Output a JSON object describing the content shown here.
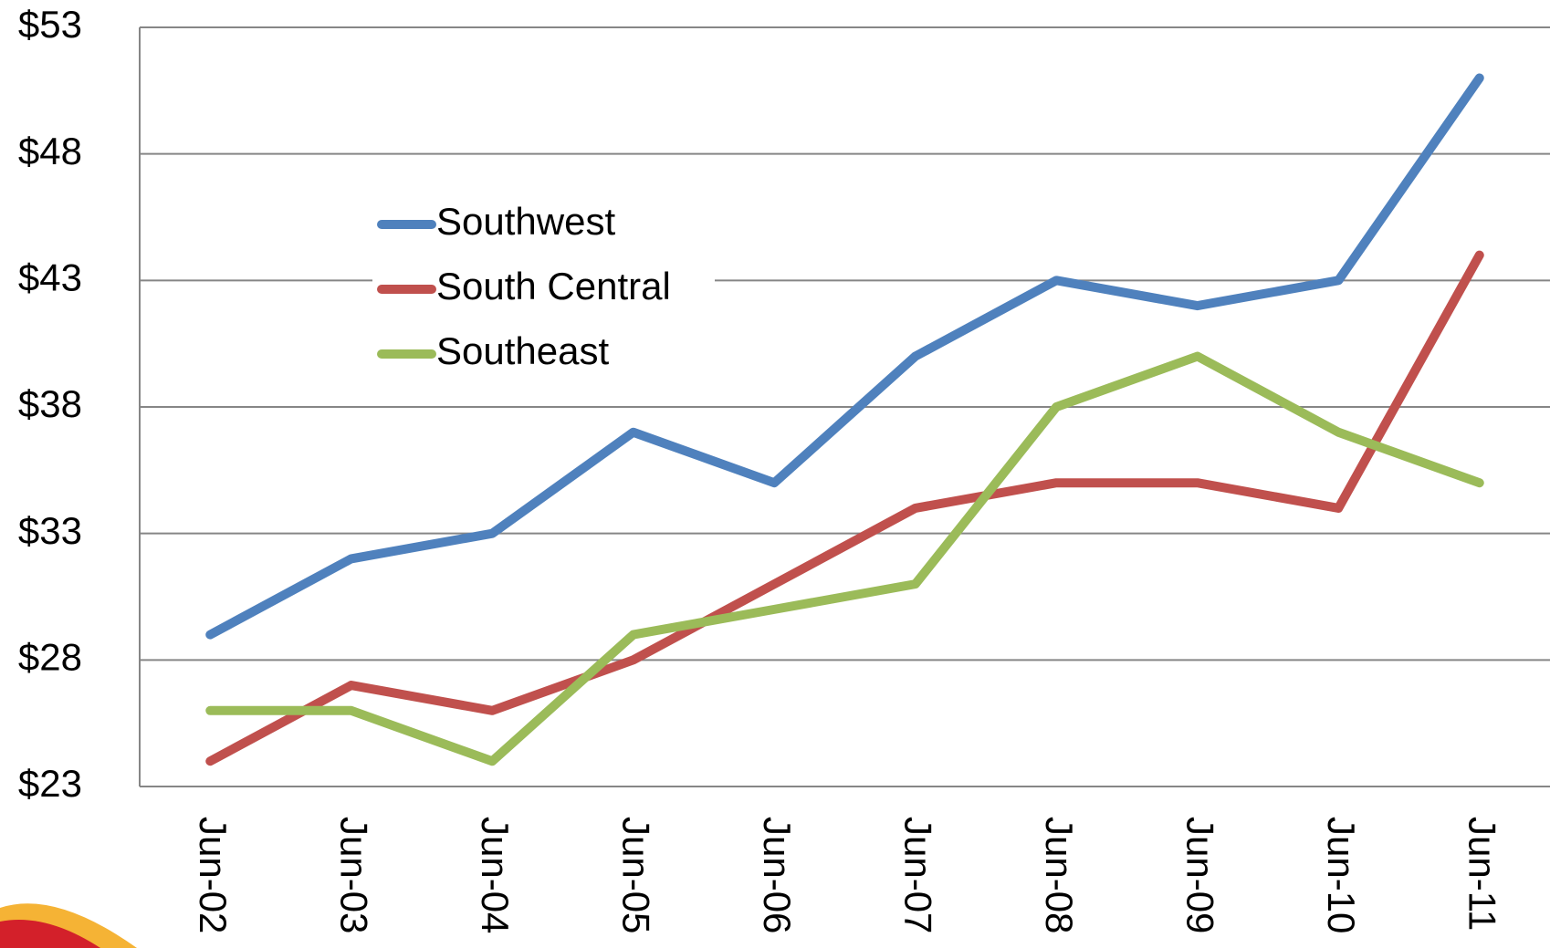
{
  "chart_data": {
    "type": "line",
    "categories": [
      "Jun-02",
      "Jun-03",
      "Jun-04",
      "Jun-05",
      "Jun-06",
      "Jun-07",
      "Jun-08",
      "Jun-09",
      "Jun-10",
      "Jun-11"
    ],
    "series": [
      {
        "name": "Southwest",
        "color": "#4f81bd",
        "values": [
          29,
          32,
          33,
          37,
          35,
          40,
          43,
          42,
          43,
          51
        ]
      },
      {
        "name": "South Central",
        "color": "#c0504d",
        "values": [
          24,
          27,
          26,
          28,
          31,
          34,
          35,
          35,
          34,
          44
        ]
      },
      {
        "name": "Southeast",
        "color": "#9bbb59",
        "values": [
          26,
          26,
          24,
          29,
          30,
          31,
          38,
          40,
          37,
          35
        ]
      }
    ],
    "ylim": [
      23,
      53
    ],
    "yticks": [
      {
        "value": 23,
        "label": "$23"
      },
      {
        "value": 28,
        "label": "$28"
      },
      {
        "value": 33,
        "label": "$33"
      },
      {
        "value": 38,
        "label": "$38"
      },
      {
        "value": 43,
        "label": "$43"
      },
      {
        "value": 48,
        "label": "$48"
      },
      {
        "value": 53,
        "label": "$53"
      }
    ],
    "grid": true,
    "legend": "upper-left"
  }
}
